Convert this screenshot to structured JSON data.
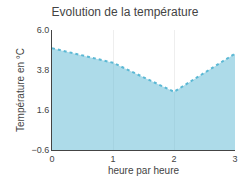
{
  "chart_data": {
    "type": "area",
    "title": "Evolution de la température",
    "xlabel": "heure par heure",
    "ylabel": "Température en °C",
    "x": [
      0,
      1,
      2,
      3
    ],
    "values": [
      5.0,
      4.2,
      2.6,
      4.7
    ],
    "xlim": [
      0,
      3
    ],
    "ylim": [
      -0.6,
      6.0
    ],
    "xticks": [
      0,
      1,
      2,
      3
    ],
    "yticks": [
      {
        "value": -0.6,
        "label": "−0.6"
      },
      1.6,
      3.8,
      {
        "value": 6.0,
        "label": "6.0"
      }
    ],
    "color": "#5bb8d4",
    "line_style": "dotted",
    "grid": "x"
  }
}
